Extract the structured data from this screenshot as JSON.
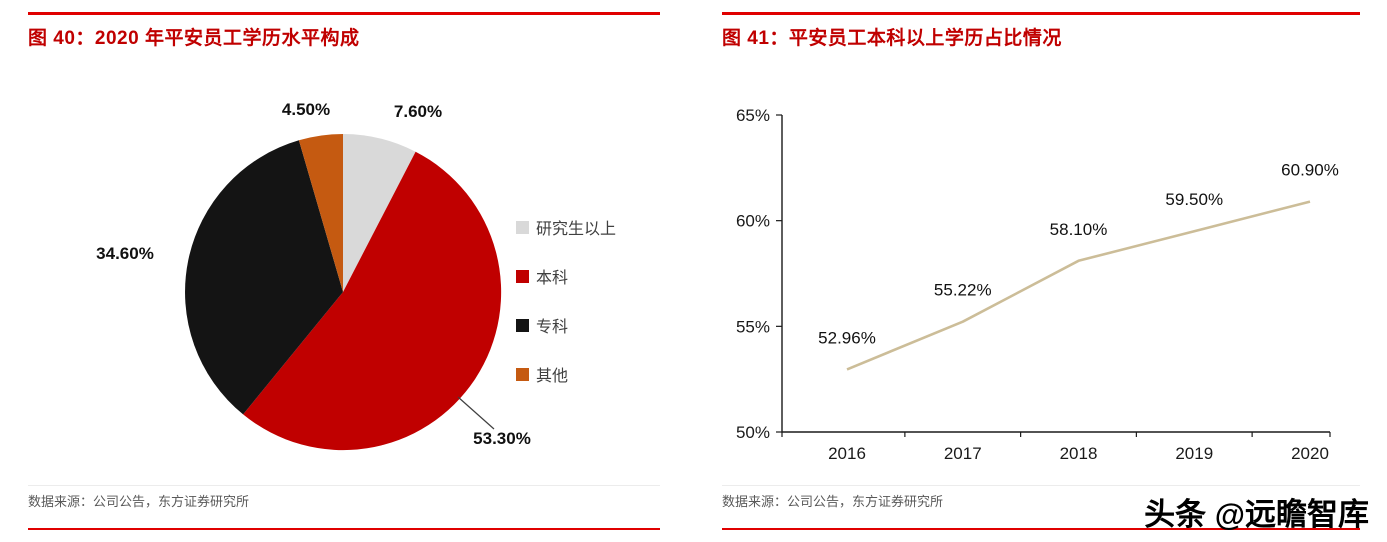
{
  "colors": {
    "accent_red": "#c00000",
    "rule_red": "#e00000",
    "source_text": "#595959",
    "axis": "#1a1a1a",
    "line_series": "#ccbd98",
    "pie_palette": [
      "#d9d9d9",
      "#c00000",
      "#141414",
      "#c55a11"
    ]
  },
  "panels": [
    {
      "title": "图 40：2020 年平安员工学历水平构成",
      "source": "数据来源：公司公告，东方证券研究所"
    },
    {
      "title": "图 41：平安员工本科以上学历占比情况",
      "source": "数据来源：公司公告，东方证券研究所"
    }
  ],
  "watermark": "头条 @远瞻智库",
  "chart_data": [
    {
      "type": "pie",
      "title": "2020 年平安员工学历水平构成",
      "labels": [
        "研究生以上",
        "本科",
        "专科",
        "其他"
      ],
      "values": [
        7.6,
        53.3,
        34.6,
        4.5
      ],
      "value_labels": [
        "7.60%",
        "53.30%",
        "34.60%",
        "4.50%"
      ],
      "colors": [
        "#d9d9d9",
        "#c00000",
        "#141414",
        "#c55a11"
      ],
      "start_angle_deg": 0,
      "direction": "clockwise",
      "legend_position": "right"
    },
    {
      "type": "line",
      "title": "平安员工本科以上学历占比情况",
      "x": [
        "2016",
        "2017",
        "2018",
        "2019",
        "2020"
      ],
      "values": [
        52.96,
        55.22,
        58.1,
        59.5,
        60.9
      ],
      "data_labels": [
        "52.96%",
        "55.22%",
        "58.10%",
        "59.50%",
        "60.90%"
      ],
      "ylim": [
        50,
        65
      ],
      "yticks": [
        50,
        55,
        60,
        65
      ],
      "ytick_labels": [
        "50%",
        "55%",
        "60%",
        "65%"
      ],
      "line_color": "#ccbd98",
      "grid": false,
      "legend": false,
      "markers": false
    }
  ]
}
